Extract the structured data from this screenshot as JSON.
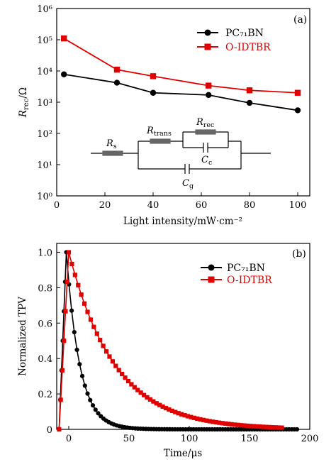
{
  "chart_data": [
    {
      "type": "line",
      "panel_label": "(a)",
      "xlabel": "Light intensity/mW·cm⁻²",
      "ylabel": "R_rec/Ω",
      "xlim": [
        0,
        105
      ],
      "ylim": [
        1,
        1000000
      ],
      "yscale": "log",
      "x_ticks": [
        0,
        20,
        40,
        60,
        80,
        100
      ],
      "y_ticks": [
        "10⁰",
        "10¹",
        "10²",
        "10³",
        "10⁴",
        "10⁵",
        "10⁶"
      ],
      "legend_position": "top-right",
      "series": [
        {
          "name": "PC₇₁BN",
          "color": "#000000",
          "marker": "circle",
          "x": [
            3,
            25,
            40,
            63,
            80,
            100
          ],
          "y": [
            7800,
            4200,
            2000,
            1700,
            950,
            550
          ]
        },
        {
          "name": "O-IDTBR",
          "color": "#e00000",
          "marker": "square",
          "x": [
            3,
            25,
            40,
            63,
            80,
            100
          ],
          "y": [
            110000,
            11000,
            6800,
            3400,
            2400,
            2000
          ]
        }
      ],
      "circuit_labels": {
        "rs": "R",
        "rs_sub": "s",
        "rtrans": "R",
        "rtrans_sub": "trans",
        "rrec": "R",
        "rrec_sub": "rec",
        "cc": "C",
        "cc_sub": "c",
        "cg": "C",
        "cg_sub": "g"
      }
    },
    {
      "type": "line",
      "panel_label": "(b)",
      "xlabel": "Time/μs",
      "ylabel": "Normalized TPV",
      "xlim": [
        -10,
        200
      ],
      "ylim": [
        0,
        1.05
      ],
      "x_ticks": [
        0,
        50,
        100,
        150,
        200
      ],
      "y_ticks": [
        0,
        0.2,
        0.4,
        0.6,
        0.8,
        1.0
      ],
      "legend_position": "top-right",
      "series": [
        {
          "name": "PC₇₁BN",
          "color": "#000000",
          "marker": "circle",
          "peak_x": -2,
          "onset_x": -8,
          "decay_time_constant": 11,
          "x_end": 190
        },
        {
          "name": "O-IDTBR",
          "color": "#e00000",
          "marker": "square",
          "peak_x": 0,
          "onset_x": -8,
          "decay_time_constant": 38,
          "x_end": 178
        }
      ]
    }
  ]
}
